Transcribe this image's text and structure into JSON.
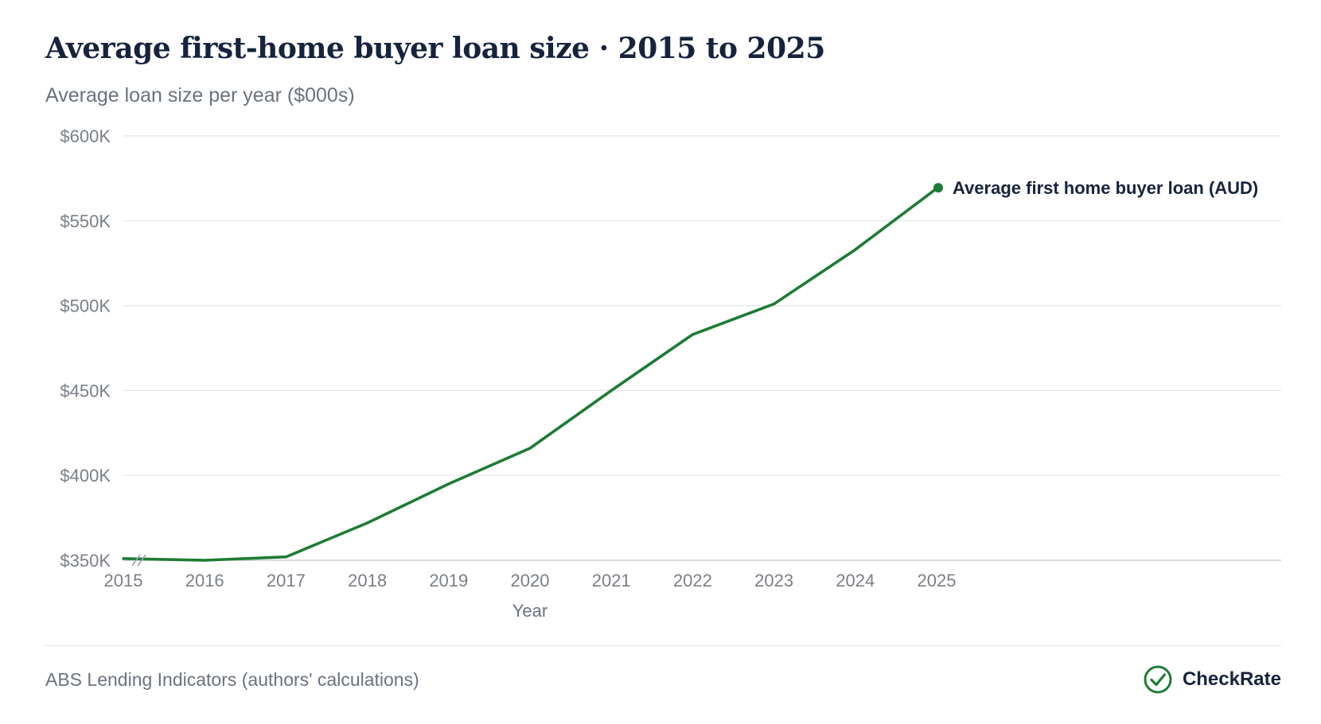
{
  "header": {
    "title": "Average first-home buyer loan size · 2015 to 2025",
    "subtitle": "Average loan size per year ($000s)"
  },
  "chart_data": {
    "type": "line",
    "x": [
      2015,
      2016,
      2017,
      2018,
      2019,
      2020,
      2021,
      2022,
      2023,
      2024,
      2025
    ],
    "series": [
      {
        "name": "Average first home buyer loan (AUD)",
        "values": [
          351,
          350,
          352,
          372,
          395,
          416,
          450,
          483,
          501,
          533,
          569
        ],
        "color": "#1e7b34"
      }
    ],
    "xlabel": "Year",
    "ylabel": "",
    "ylim": [
      350,
      600
    ],
    "yticks": [
      350,
      400,
      450,
      500,
      550,
      600
    ],
    "ytick_labels": [
      "$350K",
      "$400K",
      "$450K",
      "$500K",
      "$550K",
      "$600K"
    ],
    "xtick_labels": [
      "2015",
      "2016",
      "2017",
      "2018",
      "2019",
      "2020",
      "2021",
      "2022",
      "2023",
      "2024",
      "2025"
    ],
    "grid": "horizontal",
    "legend": "end-of-line label",
    "axis_break": true
  },
  "footer": {
    "source": "ABS Lending Indicators (authors' calculations)",
    "brand": "CheckRate",
    "brand_icon": "check-circle-icon",
    "brand_color": "#1e7b34"
  }
}
